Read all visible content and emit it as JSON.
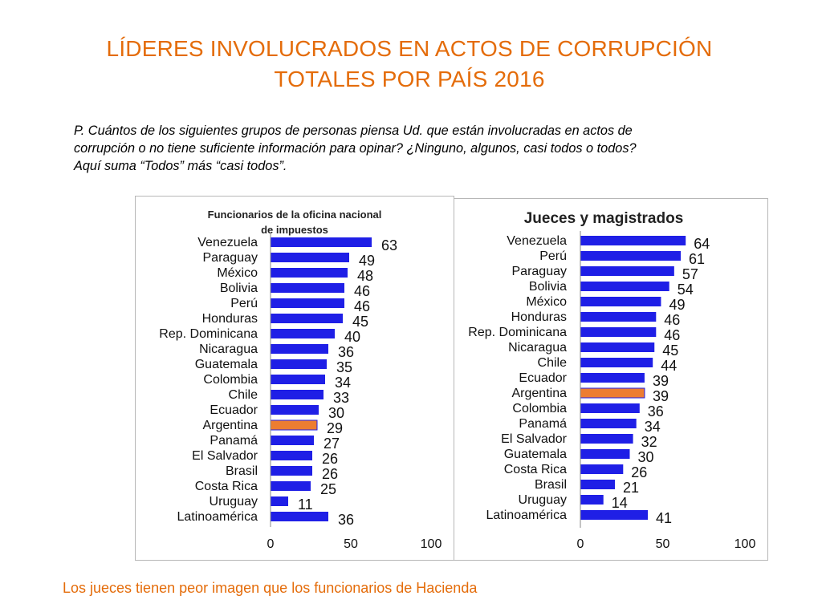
{
  "title": {
    "line1": "LÍDERES INVOLUCRADOS EN ACTOS DE CORRUPCIÓN",
    "line2": "TOTALES POR PAÍS 2016"
  },
  "question": {
    "line1": "P. Cuántos de los siguientes grupos de personas piensa Ud. que están involucradas en actos de",
    "line2": "corrupción o no tiene suficiente información para opinar? ¿Ninguno, algunos, casi todos o todos?",
    "line3": "Aquí suma “Todos” más “casi todos”."
  },
  "footer": "Los jueces tienen peor imagen que los funcionarios de Hacienda",
  "colors": {
    "accent": "#E46C0A",
    "bar": "#1F1FE6",
    "highlight_bar": "#ED7D31"
  },
  "chart_data": [
    {
      "type": "bar",
      "orientation": "horizontal",
      "title": "Funcionarios de la oficina nacional de impuestos",
      "categories": [
        "Venezuela",
        "Paraguay",
        "México",
        "Bolivia",
        "Perú",
        "Honduras",
        "Rep. Dominicana",
        "Nicaragua",
        "Guatemala",
        "Colombia",
        "Chile",
        "Ecuador",
        "Argentina",
        "Panamá",
        "El Salvador",
        "Brasil",
        "Costa Rica",
        "Uruguay",
        "Latinoamérica"
      ],
      "values": [
        63,
        49,
        48,
        46,
        46,
        45,
        40,
        36,
        35,
        34,
        33,
        30,
        29,
        27,
        26,
        26,
        25,
        11,
        36
      ],
      "highlight": "Argentina",
      "xlim": [
        0,
        100
      ],
      "xticks": [
        0,
        50,
        100
      ],
      "grid": false
    },
    {
      "type": "bar",
      "orientation": "horizontal",
      "title": "Jueces y magistrados",
      "categories": [
        "Venezuela",
        "Perú",
        "Paraguay",
        "Bolivia",
        "México",
        "Honduras",
        "Rep. Dominicana",
        "Nicaragua",
        "Chile",
        "Ecuador",
        "Argentina",
        "Colombia",
        "Panamá",
        "El Salvador",
        "Guatemala",
        "Costa Rica",
        "Brasil",
        "Uruguay",
        "Latinoamérica"
      ],
      "values": [
        64,
        61,
        57,
        54,
        49,
        46,
        46,
        45,
        44,
        39,
        39,
        36,
        34,
        32,
        30,
        26,
        21,
        14,
        41
      ],
      "highlight": "Argentina",
      "xlim": [
        0,
        100
      ],
      "xticks": [
        0,
        50,
        100
      ],
      "grid": false
    }
  ]
}
